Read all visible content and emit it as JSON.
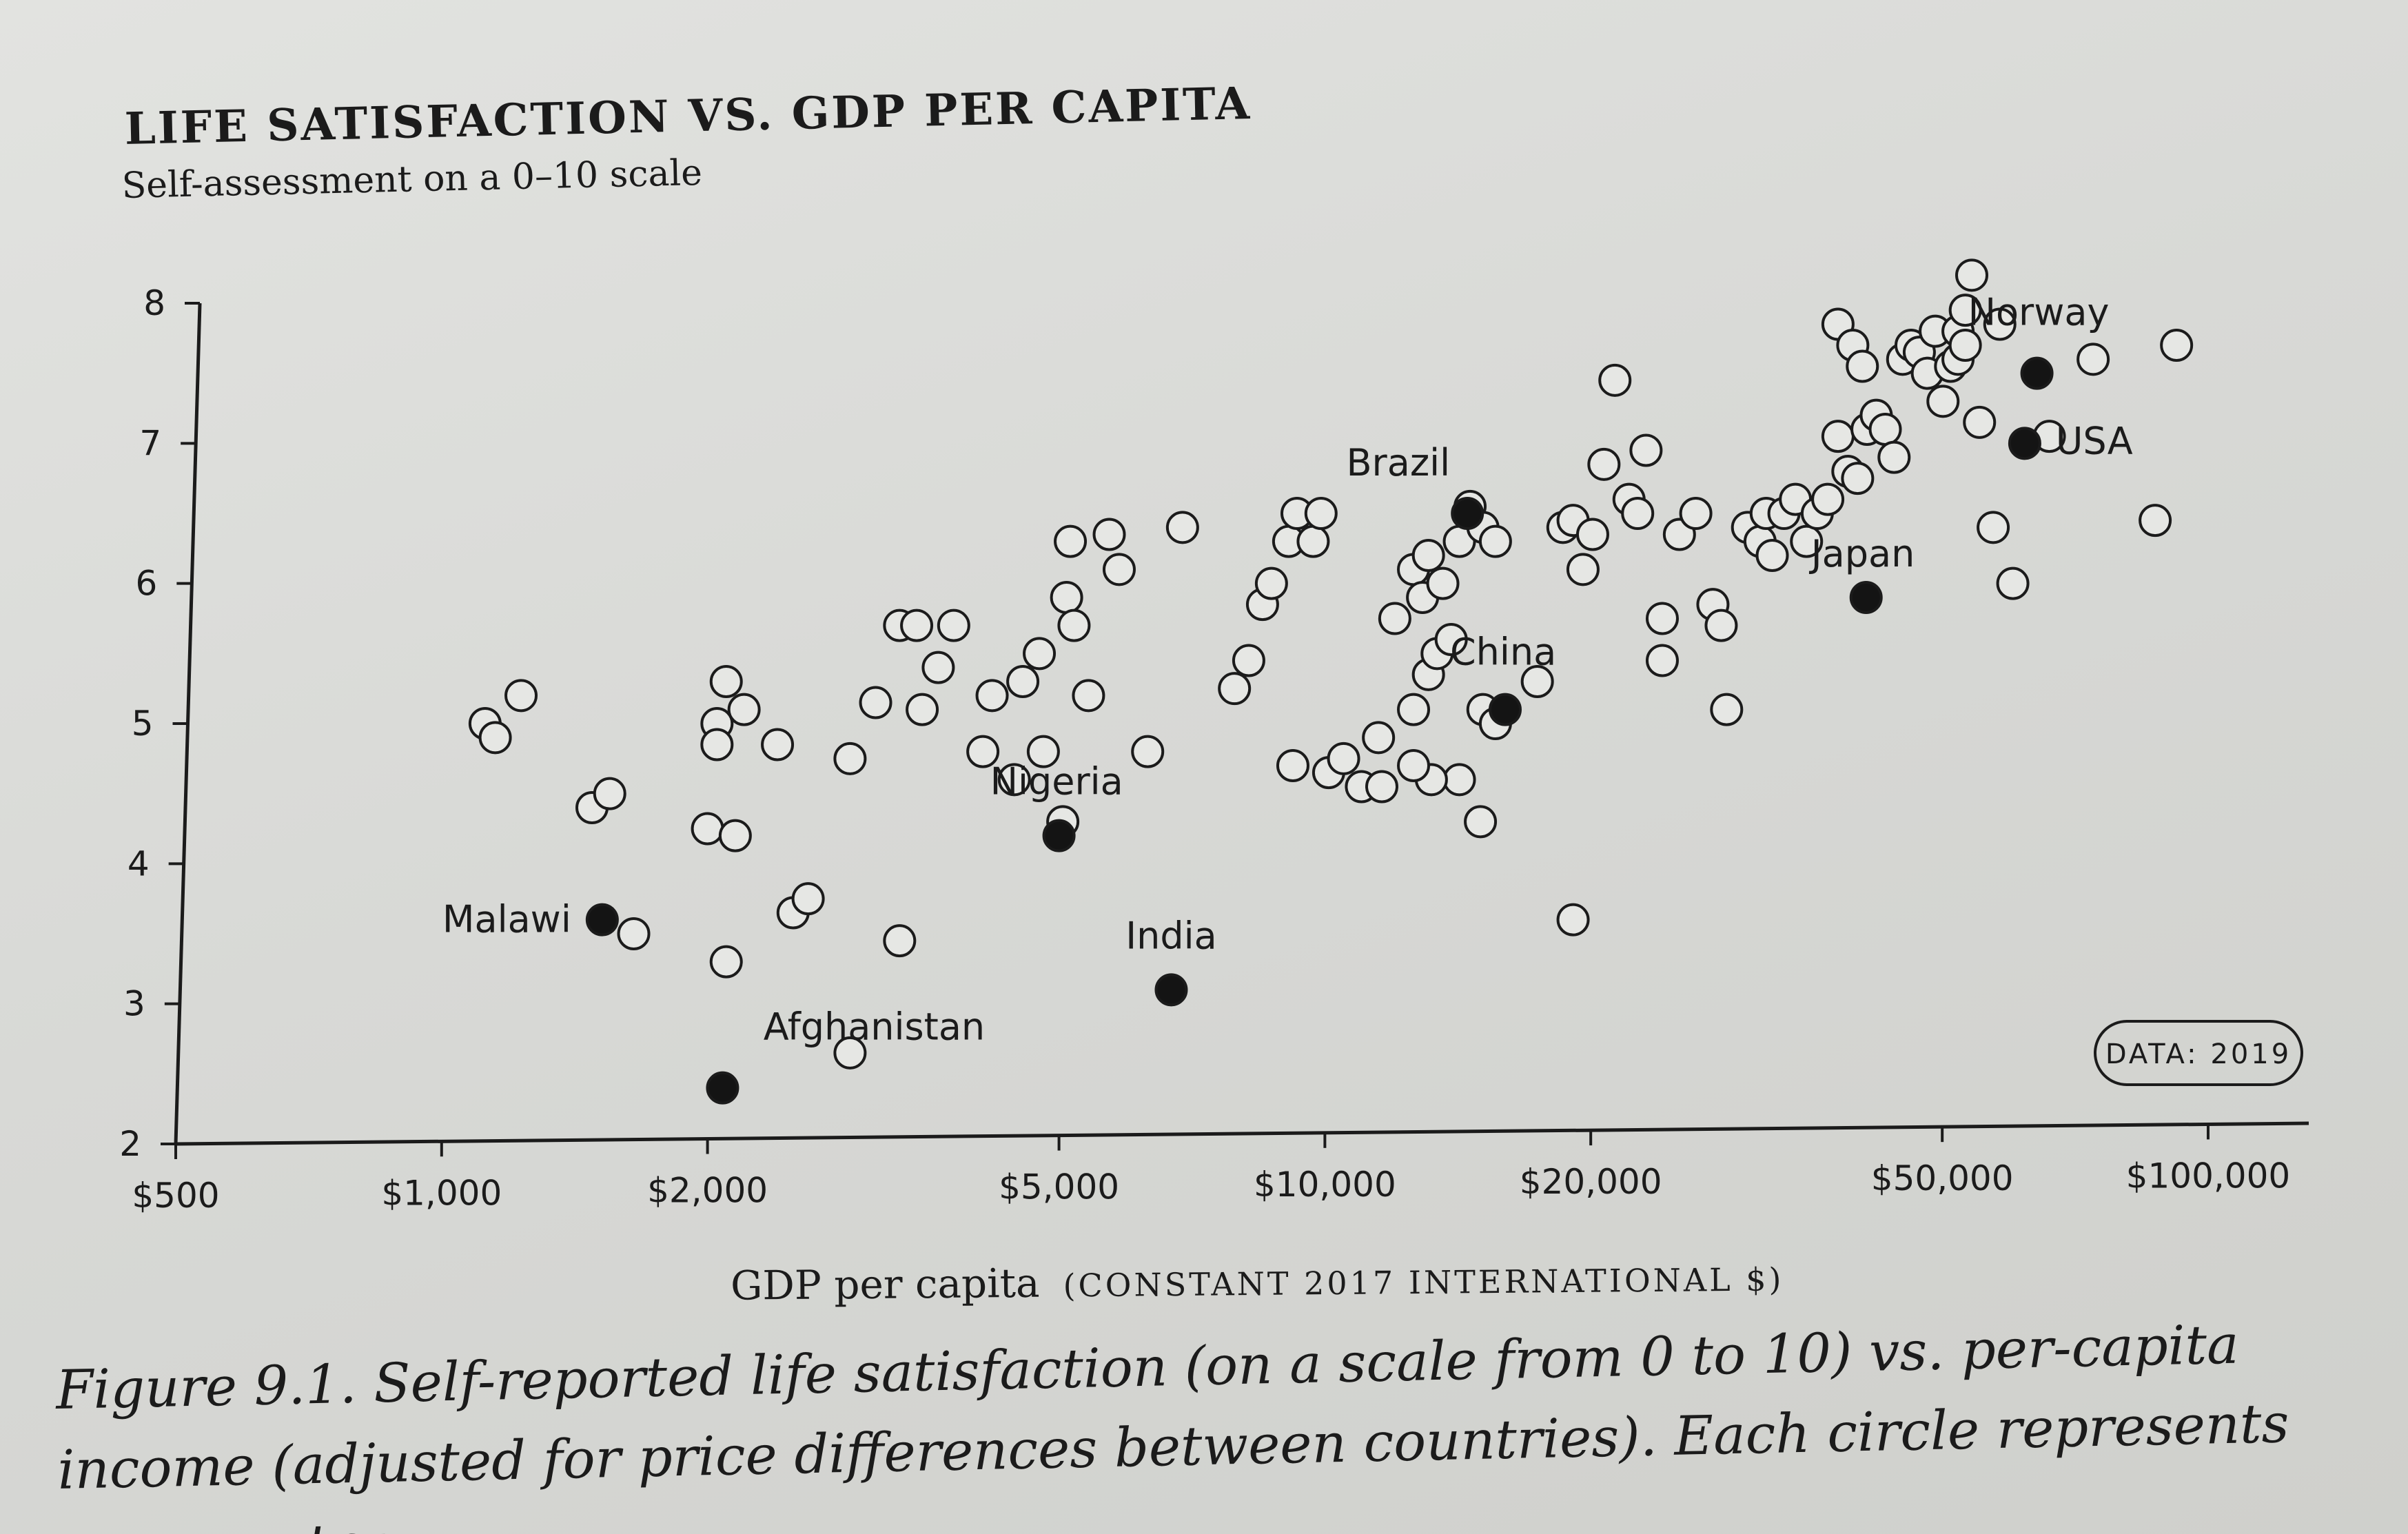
{
  "chart_data": {
    "type": "scatter",
    "title": "LIFE SATISFACTION VS. GDP PER CAPITA",
    "subtitle": "Self-assessment on a 0–10 scale",
    "xlabel": "GDP per capita",
    "xlabel_unit": "(CONSTANT 2017 INTERNATIONAL $)",
    "ylabel": "",
    "x_scale": "log",
    "xlim": [
      500,
      130000
    ],
    "ylim": [
      2,
      8
    ],
    "x_ticks": [
      500,
      1000,
      2000,
      5000,
      10000,
      20000,
      50000,
      100000
    ],
    "x_tick_labels": [
      "$500",
      "$1,000",
      "$2,000",
      "$5,000",
      "$10,000",
      "$20,000",
      "$50,000",
      "$100,000"
    ],
    "y_ticks": [
      2,
      3,
      4,
      5,
      6,
      7,
      8
    ],
    "y_tick_labels": [
      "2",
      "3",
      "4",
      "5",
      "6",
      "7",
      "8"
    ],
    "grid": false,
    "badge": "DATA: 2019",
    "highlighted": [
      {
        "name": "Norway",
        "x": 64000,
        "y": 7.5,
        "marker": "filled"
      },
      {
        "name": "USA",
        "x": 62000,
        "y": 7.0,
        "marker": "filled"
      },
      {
        "name": "Japan",
        "x": 41000,
        "y": 5.9,
        "marker": "filled"
      },
      {
        "name": "Brazil",
        "x": 14500,
        "y": 6.5,
        "marker": "filled"
      },
      {
        "name": "China",
        "x": 16000,
        "y": 5.1,
        "marker": "filled"
      },
      {
        "name": "Nigeria",
        "x": 5000,
        "y": 4.2,
        "marker": "filled"
      },
      {
        "name": "India",
        "x": 6700,
        "y": 3.1,
        "marker": "filled"
      },
      {
        "name": "Malawi",
        "x": 1520,
        "y": 3.6,
        "marker": "filled"
      },
      {
        "name": "Afghanistan",
        "x": 2080,
        "y": 2.4,
        "marker": "filled"
      },
      {
        "name": "Norway (open)",
        "x": 54000,
        "y": 8.2,
        "marker": "open",
        "label": false
      }
    ],
    "series": [
      {
        "name": "Other countries",
        "marker": "open",
        "points": [
          [
            1120,
            5.0
          ],
          [
            1150,
            4.9
          ],
          [
            1230,
            5.2
          ],
          [
            1480,
            4.4
          ],
          [
            1550,
            4.5
          ],
          [
            1650,
            3.5
          ],
          [
            2100,
            5.3
          ],
          [
            2050,
            5.0
          ],
          [
            2200,
            5.1
          ],
          [
            2050,
            4.85
          ],
          [
            2400,
            4.85
          ],
          [
            2000,
            4.25
          ],
          [
            2150,
            4.2
          ],
          [
            2100,
            3.3
          ],
          [
            2500,
            3.65
          ],
          [
            2600,
            3.75
          ],
          [
            2900,
            4.75
          ],
          [
            3100,
            5.15
          ],
          [
            3300,
            5.7
          ],
          [
            3450,
            5.7
          ],
          [
            3500,
            5.1
          ],
          [
            3650,
            5.4
          ],
          [
            3800,
            5.7
          ],
          [
            3300,
            3.45
          ],
          [
            2900,
            2.65
          ],
          [
            4100,
            4.8
          ],
          [
            4200,
            5.2
          ],
          [
            4450,
            4.6
          ],
          [
            4550,
            5.3
          ],
          [
            4750,
            5.5
          ],
          [
            4800,
            4.8
          ],
          [
            5050,
            4.3
          ],
          [
            5100,
            5.9
          ],
          [
            5150,
            6.3
          ],
          [
            5200,
            5.7
          ],
          [
            5400,
            5.2
          ],
          [
            5700,
            6.35
          ],
          [
            5850,
            6.1
          ],
          [
            6300,
            4.8
          ],
          [
            6900,
            6.4
          ],
          [
            7900,
            5.25
          ],
          [
            8200,
            5.45
          ],
          [
            8500,
            5.85
          ],
          [
            8700,
            6.0
          ],
          [
            9100,
            6.3
          ],
          [
            9300,
            6.5
          ],
          [
            9200,
            4.7
          ],
          [
            9700,
            6.3
          ],
          [
            9900,
            6.5
          ],
          [
            10100,
            4.65
          ],
          [
            10500,
            4.75
          ],
          [
            11000,
            4.55
          ],
          [
            11600,
            4.55
          ],
          [
            11500,
            4.9
          ],
          [
            12000,
            5.75
          ],
          [
            12600,
            6.1
          ],
          [
            12900,
            5.9
          ],
          [
            13100,
            6.2
          ],
          [
            13600,
            6.0
          ],
          [
            12600,
            5.1
          ],
          [
            13100,
            5.35
          ],
          [
            13400,
            5.5
          ],
          [
            13900,
            5.6
          ],
          [
            14200,
            6.3
          ],
          [
            14600,
            6.55
          ],
          [
            15100,
            6.4
          ],
          [
            15600,
            6.3
          ],
          [
            15100,
            5.1
          ],
          [
            15600,
            5.0
          ],
          [
            15000,
            4.3
          ],
          [
            14200,
            4.6
          ],
          [
            13200,
            4.6
          ],
          [
            17400,
            5.3
          ],
          [
            18600,
            6.4
          ],
          [
            19100,
            6.45
          ],
          [
            19600,
            6.1
          ],
          [
            20100,
            6.35
          ],
          [
            20700,
            6.85
          ],
          [
            21300,
            7.45
          ],
          [
            22100,
            6.6
          ],
          [
            22600,
            6.5
          ],
          [
            23100,
            6.95
          ],
          [
            24100,
            5.75
          ],
          [
            24100,
            5.45
          ],
          [
            25200,
            6.35
          ],
          [
            26300,
            6.5
          ],
          [
            27500,
            5.85
          ],
          [
            28100,
            5.7
          ],
          [
            28500,
            5.1
          ],
          [
            30100,
            6.4
          ],
          [
            31100,
            6.3
          ],
          [
            31600,
            6.5
          ],
          [
            32100,
            6.2
          ],
          [
            33100,
            6.5
          ],
          [
            34100,
            6.6
          ],
          [
            35100,
            6.3
          ],
          [
            36100,
            6.5
          ],
          [
            37100,
            6.6
          ],
          [
            38100,
            7.05
          ],
          [
            39100,
            6.8
          ],
          [
            40100,
            6.75
          ],
          [
            41100,
            7.1
          ],
          [
            42100,
            7.2
          ],
          [
            43100,
            7.1
          ],
          [
            44100,
            6.9
          ],
          [
            45100,
            7.6
          ],
          [
            46100,
            7.7
          ],
          [
            47100,
            7.65
          ],
          [
            48100,
            7.5
          ],
          [
            49100,
            7.8
          ],
          [
            50100,
            7.3
          ],
          [
            51100,
            7.55
          ],
          [
            52100,
            7.8
          ],
          [
            53100,
            7.95
          ],
          [
            55100,
            7.15
          ],
          [
            57100,
            6.4
          ],
          [
            60100,
            6.0
          ],
          [
            38100,
            7.85
          ],
          [
            39600,
            7.7
          ],
          [
            40600,
            7.55
          ],
          [
            52100,
            7.6
          ],
          [
            53100,
            7.7
          ],
          [
            58100,
            7.85
          ],
          [
            66100,
            7.05
          ],
          [
            74100,
            7.6
          ],
          [
            87100,
            6.45
          ],
          [
            92100,
            7.7
          ],
          [
            19100,
            3.6
          ],
          [
            12600,
            4.7
          ]
        ]
      }
    ]
  },
  "caption": "Figure 9.1. Self-reported life satisfaction (on a scale from 0 to 10) vs. per-capita income (adjusted for price differences between countries). Each circle represents one country."
}
